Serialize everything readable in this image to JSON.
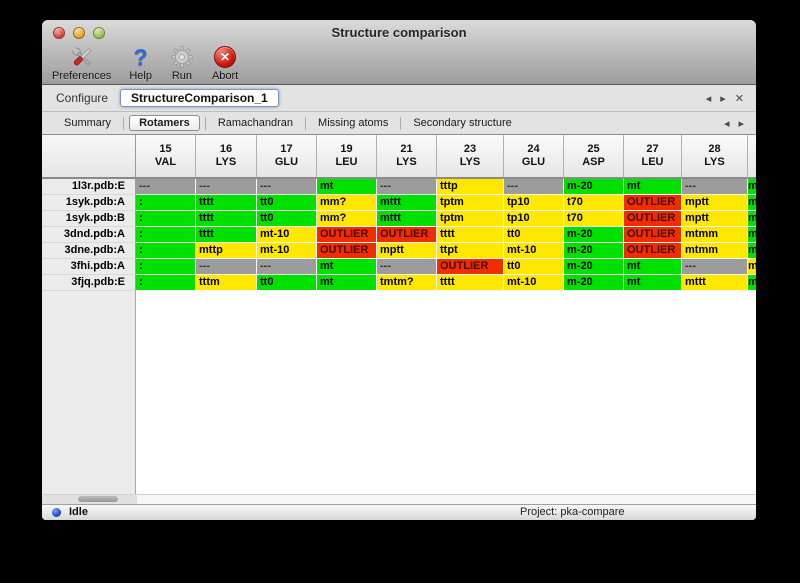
{
  "window": {
    "title": "Structure comparison"
  },
  "toolbar": {
    "items": [
      {
        "label": "Preferences",
        "icon": "tools-icon"
      },
      {
        "label": "Help",
        "icon": "help-icon"
      },
      {
        "label": "Run",
        "icon": "gear-icon"
      },
      {
        "label": "Abort",
        "icon": "abort-icon"
      }
    ],
    "abort_x": "✕",
    "help_glyph": "?"
  },
  "configure": {
    "label": "Configure",
    "session_name": "StructureComparison_1",
    "nav": {
      "prev": "◂",
      "next": "▸",
      "close": "✕"
    }
  },
  "tabs": {
    "items": [
      {
        "label": "Summary",
        "active": false
      },
      {
        "label": "Rotamers",
        "active": true
      },
      {
        "label": "Ramachandran",
        "active": false
      },
      {
        "label": "Missing atoms",
        "active": false
      },
      {
        "label": "Secondary structure",
        "active": false
      }
    ],
    "nav": {
      "prev": "◂",
      "next": "▸"
    }
  },
  "table": {
    "columns": [
      {
        "num": "15",
        "res": "VAL"
      },
      {
        "num": "16",
        "res": "LYS"
      },
      {
        "num": "17",
        "res": "GLU"
      },
      {
        "num": "19",
        "res": "LEU"
      },
      {
        "num": "21",
        "res": "LYS"
      },
      {
        "num": "23",
        "res": "LYS"
      },
      {
        "num": "24",
        "res": "GLU"
      },
      {
        "num": "25",
        "res": "ASP"
      },
      {
        "num": "27",
        "res": "LEU"
      },
      {
        "num": "28",
        "res": "LYS"
      }
    ],
    "status_colors": {
      "g": "#00e100",
      "y": "#ffe700",
      "r": "#ee2e00",
      "x": "#9c9c9c"
    },
    "rows": [
      {
        "label": "1l3r.pdb:E",
        "cells": [
          {
            "t": "---",
            "s": "x"
          },
          {
            "t": "---",
            "s": "x"
          },
          {
            "t": "---",
            "s": "x"
          },
          {
            "t": "mt",
            "s": "g"
          },
          {
            "t": "---",
            "s": "x"
          },
          {
            "t": "tttp",
            "s": "y"
          },
          {
            "t": "---",
            "s": "x"
          },
          {
            "t": "m-20",
            "s": "g"
          },
          {
            "t": "mt",
            "s": "g"
          },
          {
            "t": "---",
            "s": "x"
          }
        ],
        "edge": {
          "t": "m",
          "s": "g"
        }
      },
      {
        "label": "1syk.pdb:A",
        "cells": [
          {
            "t": ":",
            "s": "g"
          },
          {
            "t": "tttt",
            "s": "g"
          },
          {
            "t": "tt0",
            "s": "g"
          },
          {
            "t": "mm?",
            "s": "y"
          },
          {
            "t": "mttt",
            "s": "g"
          },
          {
            "t": "tptm",
            "s": "y"
          },
          {
            "t": "tp10",
            "s": "y"
          },
          {
            "t": "t70",
            "s": "y"
          },
          {
            "t": "OUTLIER",
            "s": "r"
          },
          {
            "t": "mptt",
            "s": "y"
          }
        ],
        "edge": {
          "t": "m",
          "s": "g"
        }
      },
      {
        "label": "1syk.pdb:B",
        "cells": [
          {
            "t": ":",
            "s": "g"
          },
          {
            "t": "tttt",
            "s": "g"
          },
          {
            "t": "tt0",
            "s": "g"
          },
          {
            "t": "mm?",
            "s": "y"
          },
          {
            "t": "mttt",
            "s": "g"
          },
          {
            "t": "tptm",
            "s": "y"
          },
          {
            "t": "tp10",
            "s": "y"
          },
          {
            "t": "t70",
            "s": "y"
          },
          {
            "t": "OUTLIER",
            "s": "r"
          },
          {
            "t": "mptt",
            "s": "y"
          }
        ],
        "edge": {
          "t": "m",
          "s": "g"
        }
      },
      {
        "label": "3dnd.pdb:A",
        "cells": [
          {
            "t": ":",
            "s": "g"
          },
          {
            "t": "tttt",
            "s": "g"
          },
          {
            "t": "mt-10",
            "s": "y"
          },
          {
            "t": "OUTLIER",
            "s": "r"
          },
          {
            "t": "OUTLIER",
            "s": "r"
          },
          {
            "t": "tttt",
            "s": "y"
          },
          {
            "t": "tt0",
            "s": "y"
          },
          {
            "t": "m-20",
            "s": "g"
          },
          {
            "t": "OUTLIER",
            "s": "r"
          },
          {
            "t": "mtmm",
            "s": "y"
          }
        ],
        "edge": {
          "t": "m",
          "s": "g"
        }
      },
      {
        "label": "3dne.pdb:A",
        "cells": [
          {
            "t": ":",
            "s": "g"
          },
          {
            "t": "mttp",
            "s": "y"
          },
          {
            "t": "mt-10",
            "s": "y"
          },
          {
            "t": "OUTLIER",
            "s": "r"
          },
          {
            "t": "mptt",
            "s": "y"
          },
          {
            "t": "ttpt",
            "s": "y"
          },
          {
            "t": "mt-10",
            "s": "y"
          },
          {
            "t": "m-20",
            "s": "g"
          },
          {
            "t": "OUTLIER",
            "s": "r"
          },
          {
            "t": "mtmm",
            "s": "y"
          }
        ],
        "edge": {
          "t": "m",
          "s": "g"
        }
      },
      {
        "label": "3fhi.pdb:A",
        "cells": [
          {
            "t": ":",
            "s": "g"
          },
          {
            "t": "---",
            "s": "x"
          },
          {
            "t": "---",
            "s": "x"
          },
          {
            "t": "mt",
            "s": "g"
          },
          {
            "t": "---",
            "s": "x"
          },
          {
            "t": "OUTLIER",
            "s": "r"
          },
          {
            "t": "tt0",
            "s": "y"
          },
          {
            "t": "m-20",
            "s": "g"
          },
          {
            "t": "mt",
            "s": "g"
          },
          {
            "t": "---",
            "s": "x"
          }
        ],
        "edge": {
          "t": "m",
          "s": "y"
        }
      },
      {
        "label": "3fjq.pdb:E",
        "cells": [
          {
            "t": ":",
            "s": "g"
          },
          {
            "t": "tttm",
            "s": "y"
          },
          {
            "t": "tt0",
            "s": "g"
          },
          {
            "t": "mt",
            "s": "g"
          },
          {
            "t": "tmtm?",
            "s": "y"
          },
          {
            "t": "tttt",
            "s": "y"
          },
          {
            "t": "mt-10",
            "s": "y"
          },
          {
            "t": "m-20",
            "s": "g"
          },
          {
            "t": "mt",
            "s": "g"
          },
          {
            "t": "mttt",
            "s": "y"
          }
        ],
        "edge": {
          "t": "m",
          "s": "g"
        }
      }
    ]
  },
  "statusbar": {
    "state": "Idle",
    "project": "Project: pka-compare"
  }
}
